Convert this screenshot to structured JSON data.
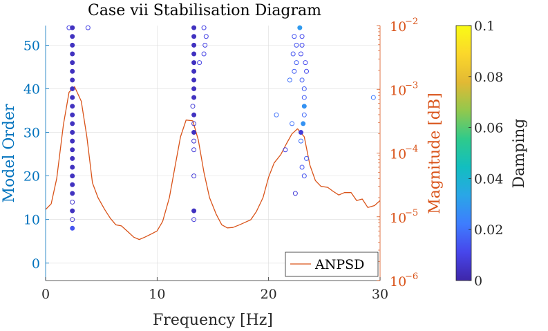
{
  "chart_data": {
    "type": "scatter",
    "title": "Case vii Stabilisation Diagram",
    "xlabel": "Frequency [Hz]",
    "ylabel_left": "Model Order",
    "ylabel_right": "Magnitude [dB]",
    "colorbar_label": "Damping",
    "xlim": [
      0,
      30
    ],
    "ylim_left": [
      -4,
      54.5
    ],
    "ylim_right_log10": [
      -6,
      -2
    ],
    "grid": true,
    "legend_position": "bottom-right",
    "x_ticks": [
      0,
      10,
      20,
      30
    ],
    "x_tick_labels": [
      "0",
      "10",
      "20",
      "30"
    ],
    "y_left_ticks": [
      0,
      10,
      20,
      30,
      40,
      50
    ],
    "y_left_tick_labels": [
      "0",
      "10",
      "20",
      "30",
      "40",
      "50"
    ],
    "y_right_ticks_log10": [
      -6,
      -5,
      -4,
      -3,
      -2
    ],
    "y_right_tick_labels": [
      {
        "base": "10",
        "exp": "−6"
      },
      {
        "base": "10",
        "exp": "−5"
      },
      {
        "base": "10",
        "exp": "−4"
      },
      {
        "base": "10",
        "exp": "−3"
      },
      {
        "base": "10",
        "exp": "−2"
      }
    ],
    "colorbar_ticks": [
      0,
      0.02,
      0.04,
      0.06,
      0.08,
      0.1
    ],
    "colorbar_tick_labels": [
      "0",
      "0.02",
      "0.04",
      "0.06",
      "0.08",
      "0.1"
    ],
    "colorbar_range": [
      0,
      0.1
    ],
    "colormap": [
      "#3e26a8",
      "#4746eb",
      "#3e7dfe",
      "#2aa6e7",
      "#12bec0",
      "#2fca8b",
      "#92c84d",
      "#e2b934",
      "#fbd72b",
      "#f9fb15"
    ],
    "series": [
      {
        "name": "",
        "kind": "poles",
        "points": [
          {
            "x": 2.1,
            "y": 54,
            "d": 0.01,
            "filled": false
          },
          {
            "x": 2.4,
            "y": 54,
            "d": 0.004,
            "filled": true
          },
          {
            "x": 3.8,
            "y": 54,
            "d": 0.01,
            "filled": false
          },
          {
            "x": 2.4,
            "y": 52,
            "d": 0.004,
            "filled": true
          },
          {
            "x": 2.4,
            "y": 50,
            "d": 0.004,
            "filled": true
          },
          {
            "x": 2.4,
            "y": 48,
            "d": 0.004,
            "filled": true
          },
          {
            "x": 2.4,
            "y": 46,
            "d": 0.004,
            "filled": true
          },
          {
            "x": 2.4,
            "y": 44,
            "d": 0.004,
            "filled": true
          },
          {
            "x": 2.4,
            "y": 42,
            "d": 0.004,
            "filled": true
          },
          {
            "x": 2.4,
            "y": 40,
            "d": 0.004,
            "filled": true
          },
          {
            "x": 2.4,
            "y": 38,
            "d": 0.004,
            "filled": true
          },
          {
            "x": 2.4,
            "y": 36,
            "d": 0.004,
            "filled": true
          },
          {
            "x": 2.4,
            "y": 34,
            "d": 0.004,
            "filled": true
          },
          {
            "x": 2.4,
            "y": 32,
            "d": 0.004,
            "filled": true
          },
          {
            "x": 2.4,
            "y": 30,
            "d": 0.004,
            "filled": true
          },
          {
            "x": 2.4,
            "y": 28,
            "d": 0.004,
            "filled": true
          },
          {
            "x": 2.4,
            "y": 26,
            "d": 0.004,
            "filled": true
          },
          {
            "x": 2.4,
            "y": 24,
            "d": 0.004,
            "filled": true
          },
          {
            "x": 2.4,
            "y": 22,
            "d": 0.004,
            "filled": true
          },
          {
            "x": 2.4,
            "y": 20,
            "d": 0.004,
            "filled": true
          },
          {
            "x": 2.4,
            "y": 18,
            "d": 0.004,
            "filled": true
          },
          {
            "x": 2.4,
            "y": 16,
            "d": 0.004,
            "filled": true
          },
          {
            "x": 2.4,
            "y": 14,
            "d": 0.006,
            "filled": false
          },
          {
            "x": 2.4,
            "y": 12,
            "d": 0.004,
            "filled": true
          },
          {
            "x": 2.4,
            "y": 10,
            "d": 0.006,
            "filled": false
          },
          {
            "x": 2.4,
            "y": 8,
            "d": 0.014,
            "filled": true
          },
          {
            "x": 13.3,
            "y": 54,
            "d": 0.004,
            "filled": true
          },
          {
            "x": 14.2,
            "y": 54,
            "d": 0.01,
            "filled": false
          },
          {
            "x": 13.3,
            "y": 52,
            "d": 0.004,
            "filled": true
          },
          {
            "x": 14.4,
            "y": 52,
            "d": 0.01,
            "filled": false
          },
          {
            "x": 13.3,
            "y": 50,
            "d": 0.004,
            "filled": true
          },
          {
            "x": 14.3,
            "y": 50,
            "d": 0.01,
            "filled": false
          },
          {
            "x": 13.3,
            "y": 48,
            "d": 0.004,
            "filled": true
          },
          {
            "x": 14.2,
            "y": 48,
            "d": 0.01,
            "filled": false
          },
          {
            "x": 13.3,
            "y": 46,
            "d": 0.004,
            "filled": true
          },
          {
            "x": 13.8,
            "y": 46,
            "d": 0.01,
            "filled": false
          },
          {
            "x": 13.3,
            "y": 44,
            "d": 0.004,
            "filled": true
          },
          {
            "x": 13.3,
            "y": 42,
            "d": 0.004,
            "filled": true
          },
          {
            "x": 13.3,
            "y": 40,
            "d": 0.004,
            "filled": true
          },
          {
            "x": 13.3,
            "y": 38,
            "d": 0.004,
            "filled": true
          },
          {
            "x": 13.2,
            "y": 36,
            "d": 0.008,
            "filled": false
          },
          {
            "x": 13.3,
            "y": 34,
            "d": 0.004,
            "filled": true
          },
          {
            "x": 13.3,
            "y": 32,
            "d": 0.006,
            "filled": false
          },
          {
            "x": 13.3,
            "y": 30,
            "d": 0.004,
            "filled": true
          },
          {
            "x": 13.3,
            "y": 28,
            "d": 0.006,
            "filled": false
          },
          {
            "x": 13.3,
            "y": 26,
            "d": 0.008,
            "filled": false
          },
          {
            "x": 13.3,
            "y": 20,
            "d": 0.008,
            "filled": false
          },
          {
            "x": 13.3,
            "y": 12,
            "d": 0.004,
            "filled": true
          },
          {
            "x": 13.3,
            "y": 10,
            "d": 0.008,
            "filled": false
          },
          {
            "x": 22.8,
            "y": 54,
            "d": 0.03,
            "filled": true
          },
          {
            "x": 22.3,
            "y": 52,
            "d": 0.014,
            "filled": false
          },
          {
            "x": 23.0,
            "y": 52,
            "d": 0.012,
            "filled": false
          },
          {
            "x": 22.5,
            "y": 50,
            "d": 0.014,
            "filled": false
          },
          {
            "x": 23.0,
            "y": 50,
            "d": 0.012,
            "filled": false
          },
          {
            "x": 22.2,
            "y": 48,
            "d": 0.014,
            "filled": false
          },
          {
            "x": 22.9,
            "y": 48,
            "d": 0.012,
            "filled": false
          },
          {
            "x": 22.5,
            "y": 46,
            "d": 0.016,
            "filled": false
          },
          {
            "x": 23.3,
            "y": 46,
            "d": 0.012,
            "filled": false
          },
          {
            "x": 22.3,
            "y": 44,
            "d": 0.016,
            "filled": false
          },
          {
            "x": 23.4,
            "y": 44,
            "d": 0.012,
            "filled": false
          },
          {
            "x": 21.9,
            "y": 42,
            "d": 0.02,
            "filled": false
          },
          {
            "x": 23.0,
            "y": 42,
            "d": 0.016,
            "filled": false
          },
          {
            "x": 23.2,
            "y": 40,
            "d": 0.016,
            "filled": false
          },
          {
            "x": 23.2,
            "y": 38,
            "d": 0.016,
            "filled": false
          },
          {
            "x": 29.4,
            "y": 38,
            "d": 0.022,
            "filled": false
          },
          {
            "x": 23.2,
            "y": 36,
            "d": 0.028,
            "filled": true
          },
          {
            "x": 20.7,
            "y": 34,
            "d": 0.02,
            "filled": false
          },
          {
            "x": 23.2,
            "y": 34,
            "d": 0.018,
            "filled": false
          },
          {
            "x": 22.1,
            "y": 32,
            "d": 0.02,
            "filled": false
          },
          {
            "x": 23.1,
            "y": 32,
            "d": 0.028,
            "filled": true
          },
          {
            "x": 22.9,
            "y": 30,
            "d": 0.008,
            "filled": true
          },
          {
            "x": 22.9,
            "y": 28,
            "d": 0.02,
            "filled": false
          },
          {
            "x": 21.5,
            "y": 26,
            "d": 0.01,
            "filled": false
          },
          {
            "x": 23.4,
            "y": 24,
            "d": 0.016,
            "filled": false
          },
          {
            "x": 23.0,
            "y": 22,
            "d": 0.014,
            "filled": false
          },
          {
            "x": 23.2,
            "y": 20,
            "d": 0.014,
            "filled": false
          },
          {
            "x": 22.4,
            "y": 16,
            "d": 0.008,
            "filled": false
          }
        ]
      },
      {
        "name": "ANPSD",
        "kind": "line",
        "color": "#d95319",
        "x": [
          0,
          0.5,
          1.0,
          1.6,
          2.1,
          2.6,
          3.2,
          3.7,
          4.2,
          4.7,
          5.3,
          5.8,
          6.3,
          6.8,
          7.4,
          7.9,
          8.4,
          8.9,
          9.5,
          10.0,
          10.5,
          11.1,
          11.6,
          12.1,
          12.6,
          13.2,
          13.7,
          14.2,
          14.7,
          15.3,
          15.8,
          16.3,
          16.8,
          17.4,
          17.9,
          18.4,
          18.9,
          19.5,
          20.0,
          20.5,
          21.1,
          21.6,
          22.1,
          22.6,
          23.2,
          23.7,
          24.2,
          24.7,
          25.3,
          25.8,
          26.3,
          26.8,
          27.4,
          27.9,
          28.4,
          28.9,
          29.5,
          30.0
        ],
        "y": [
          1.3e-05,
          1.6e-05,
          4e-05,
          0.00028,
          0.0009,
          0.0011,
          0.00065,
          0.00018,
          3.4e-05,
          2e-05,
          1.3e-05,
          9.5e-06,
          7.5e-06,
          7.2e-06,
          5.8e-06,
          4.8e-06,
          4.4e-06,
          4.8e-06,
          5.4e-06,
          6e-06,
          8.5e-06,
          2e-05,
          6e-05,
          0.00018,
          0.00033,
          0.00032,
          0.00016,
          5e-05,
          2e-05,
          1.1e-05,
          7.5e-06,
          6.7e-06,
          6.8e-06,
          7.5e-06,
          8.2e-06,
          9e-06,
          1.2e-05,
          2e-05,
          4.2e-05,
          7e-05,
          9.5e-05,
          0.00014,
          0.0002,
          0.00024,
          0.00018,
          6.5e-05,
          3.7e-05,
          3e-05,
          2.9e-05,
          2.5e-05,
          2.2e-05,
          2.4e-05,
          2.4e-05,
          1.8e-05,
          1.9e-05,
          1.4e-05,
          1.5e-05,
          1.8e-05
        ]
      }
    ]
  }
}
